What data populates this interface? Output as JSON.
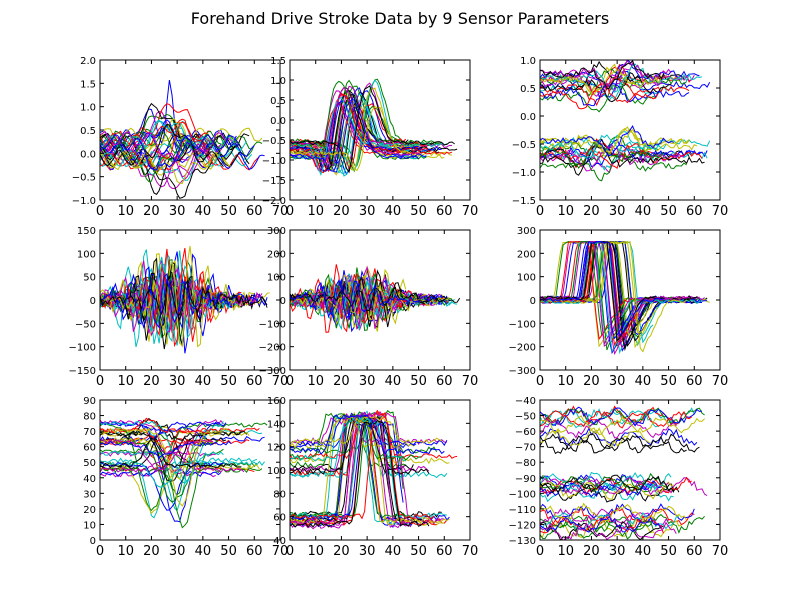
{
  "title": "Forehand Drive Stroke Data by 9 Sensor Parameters",
  "colors": [
    "#0000ff",
    "#008000",
    "#ff0000",
    "#00bfbf",
    "#bf00bf",
    "#bfbf00",
    "#000000"
  ],
  "chart_data": [
    {
      "type": "line",
      "ylim": [
        -1,
        2
      ],
      "xlim": [
        0,
        70
      ],
      "xticks": [
        "0",
        "10",
        "20",
        "30",
        "40",
        "50",
        "60",
        "70"
      ],
      "yticks": [
        "−1.0",
        "−0.5",
        "0.0",
        "0.5",
        "1.0",
        "1.5",
        "2.0"
      ],
      "ytick_values": [
        -1,
        -0.5,
        0,
        0.5,
        1,
        1.5,
        2
      ],
      "gen": {
        "kind": "bell_mixed",
        "nseries": 36,
        "base": [
          -0.2,
          0.4
        ],
        "ampAbs": [
          0.2,
          0.8
        ],
        "spikeMax": 1.55,
        "noise": 0.03,
        "width": [
          3,
          6
        ]
      }
    },
    {
      "type": "line",
      "ylim": [
        -2,
        1.5
      ],
      "xlim": [
        0,
        70
      ],
      "xticks": [
        "0",
        "10",
        "20",
        "30",
        "40",
        "50",
        "60",
        "70"
      ],
      "yticks": [
        "−2.0",
        "−1.5",
        "−1.0",
        "−0.5",
        "0.0",
        "0.5",
        "1.0",
        "1.5"
      ],
      "ytick_values": [
        -2,
        -1.5,
        -1,
        -0.5,
        0,
        0.5,
        1,
        1.5
      ],
      "gen": {
        "kind": "bump",
        "nseries": 36,
        "base": [
          -1.0,
          -0.5
        ],
        "peak": [
          0.3,
          1.0
        ],
        "trough": [
          -1.6,
          -2.0
        ],
        "noise": 0.05
      }
    },
    {
      "type": "line",
      "ylim": [
        -1.5,
        1
      ],
      "xlim": [
        0,
        70
      ],
      "xticks": [
        "0",
        "10",
        "20",
        "30",
        "40",
        "50",
        "60",
        "70"
      ],
      "yticks": [
        "−1.5",
        "−1.0",
        "−0.5",
        "0.0",
        "0.5",
        "1.0"
      ],
      "ytick_values": [
        -1.5,
        -1,
        -0.5,
        0,
        0.5,
        1
      ],
      "gen": {
        "kind": "twoband",
        "nseries": 36,
        "bands": [
          [
            0.3,
            0.8
          ],
          [
            -0.9,
            -0.4
          ]
        ],
        "noise": 0.06
      }
    },
    {
      "type": "line",
      "ylim": [
        -150,
        150
      ],
      "xlim": [
        0,
        70
      ],
      "xticks": [
        "0",
        "10",
        "20",
        "30",
        "40",
        "50",
        "60",
        "70"
      ],
      "yticks": [
        "−150",
        "−100",
        "−50",
        "0",
        "50",
        "100",
        "150"
      ],
      "ytick_values": [
        -150,
        -100,
        -50,
        0,
        50,
        100,
        150
      ],
      "gen": {
        "kind": "noisy",
        "nseries": 36,
        "base": [
          -5,
          5
        ],
        "amp": [
          20,
          110
        ],
        "noise": 14
      }
    },
    {
      "type": "line",
      "ylim": [
        -300,
        300
      ],
      "xlim": [
        0,
        70
      ],
      "xticks": [
        "0",
        "10",
        "20",
        "30",
        "40",
        "50",
        "60",
        "70"
      ],
      "yticks": [
        "−300",
        "−200",
        "−100",
        "0",
        "100",
        "200",
        "300"
      ],
      "ytick_values": [
        -300,
        -200,
        -100,
        0,
        100,
        200,
        300
      ],
      "gen": {
        "kind": "noisy",
        "nseries": 36,
        "base": [
          -10,
          10
        ],
        "amp": [
          40,
          150
        ],
        "noise": 18
      }
    },
    {
      "type": "line",
      "ylim": [
        -300,
        300
      ],
      "xlim": [
        0,
        70
      ],
      "xticks": [
        "0",
        "10",
        "20",
        "30",
        "40",
        "50",
        "60",
        "70"
      ],
      "yticks": [
        "−300",
        "−200",
        "−100",
        "0",
        "100",
        "200",
        "300"
      ],
      "ytick_values": [
        -300,
        -200,
        -100,
        0,
        100,
        200,
        300
      ],
      "gen": {
        "kind": "sat",
        "nseries": 36,
        "base": [
          -10,
          10
        ],
        "peak": [
          250,
          250
        ],
        "trough": [
          -150,
          -245
        ],
        "noise": 8
      }
    },
    {
      "type": "line",
      "ylim": [
        0,
        90
      ],
      "xlim": [
        0,
        70
      ],
      "xticks": [
        "0",
        "10",
        "20",
        "30",
        "40",
        "50",
        "60",
        "70"
      ],
      "yticks": [
        "0",
        "10",
        "20",
        "30",
        "40",
        "50",
        "60",
        "70",
        "80",
        "90"
      ],
      "ytick_values": [
        0,
        10,
        20,
        30,
        40,
        50,
        60,
        70,
        80,
        90
      ],
      "gen": {
        "kind": "swing",
        "nseries": 36,
        "bands": [
          [
            68,
            76
          ],
          [
            42,
            52
          ],
          [
            55,
            66
          ]
        ],
        "swingTo": [
          5,
          80
        ],
        "noise": 1.5
      }
    },
    {
      "type": "line",
      "ylim": [
        40,
        160
      ],
      "xlim": [
        0,
        70
      ],
      "xticks": [
        "0",
        "10",
        "20",
        "30",
        "40",
        "50",
        "60",
        "70"
      ],
      "yticks": [
        "40",
        "60",
        "80",
        "100",
        "120",
        "140",
        "160"
      ],
      "ytick_values": [
        40,
        60,
        80,
        100,
        120,
        140,
        160
      ],
      "gen": {
        "kind": "pulse",
        "nseries": 36,
        "bands": [
          [
            52,
            62
          ],
          [
            95,
            125
          ]
        ],
        "peak": [
          140,
          150
        ],
        "noise": 2.5
      }
    },
    {
      "type": "line",
      "ylim": [
        -130,
        -40
      ],
      "xlim": [
        0,
        70
      ],
      "xticks": [
        "0",
        "10",
        "20",
        "30",
        "40",
        "50",
        "60",
        "70"
      ],
      "yticks": [
        "−130",
        "−120",
        "−110",
        "−100",
        "−90",
        "−80",
        "−70",
        "−60",
        "−50",
        "−40"
      ],
      "ytick_values": [
        -130,
        -120,
        -110,
        -100,
        -90,
        -80,
        -70,
        -60,
        -50,
        -40
      ],
      "gen": {
        "kind": "bands",
        "nseries": 36,
        "bands": [
          [
            -70,
            -50
          ],
          [
            -100,
            -92
          ],
          [
            -125,
            -112
          ]
        ],
        "noise": 2.2
      }
    }
  ]
}
